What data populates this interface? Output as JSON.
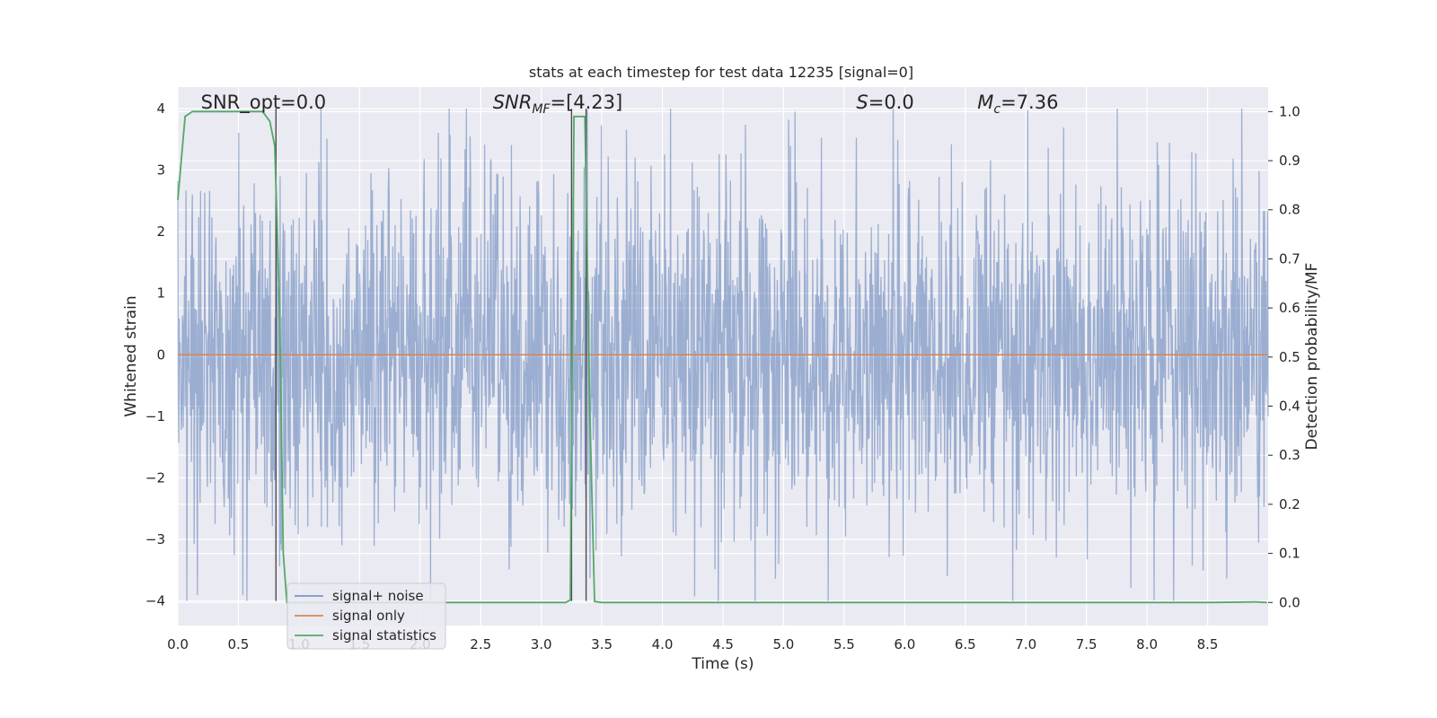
{
  "chart_data": {
    "type": "line",
    "title": "stats at each timestep for test data 12235 [signal=0]",
    "xlabel": "Time (s)",
    "ylabel": "Whitened strain",
    "ylabel_right": "Detection probability/MF",
    "xlim": [
      0.0,
      9.0
    ],
    "ylim": [
      -4.4,
      4.35
    ],
    "ylim_right": [
      -0.047,
      1.05
    ],
    "grid": true,
    "legend_position": "lower-left",
    "x_ticks": [
      "0.0",
      "0.5",
      "1.0",
      "1.5",
      "2.0",
      "2.5",
      "3.0",
      "3.5",
      "4.0",
      "4.5",
      "5.0",
      "5.5",
      "6.0",
      "6.5",
      "7.0",
      "7.5",
      "8.0",
      "8.5"
    ],
    "y_ticks": [
      "4",
      "3",
      "2",
      "1",
      "0",
      "−1",
      "−2",
      "−3",
      "−4"
    ],
    "y_ticks_right": [
      "1.0",
      "0.9",
      "0.8",
      "0.7",
      "0.6",
      "0.5",
      "0.4",
      "0.3",
      "0.2",
      "0.1",
      "0.0"
    ],
    "annotations": [
      {
        "label": "SNR_opt=0.0",
        "x": 0.19
      },
      {
        "label": "SNR",
        "sub": "MF",
        "suffix": "=[4.23]",
        "italic": true,
        "x": 2.6
      },
      {
        "label": "S",
        "suffix": "=0.0",
        "italic": true,
        "x": 5.6
      },
      {
        "label": "M",
        "sub": "c",
        "suffix": "=7.36",
        "italic": true,
        "x": 6.6
      }
    ],
    "vlines_x": [
      0.81,
      3.25,
      3.37
    ],
    "series": [
      {
        "name": "signal+ noise",
        "color": "#4c72b0",
        "opacity": 0.5,
        "description_envelope_seed": 12235,
        "x_range": [
          0.0,
          9.0
        ],
        "amplitude_range": [
          -4.0,
          4.0
        ],
        "typical_abs": 1.7
      },
      {
        "name": "signal only",
        "color": "#dd8452",
        "x": [
          0.0,
          9.0
        ],
        "y": [
          0.0,
          0.0
        ]
      },
      {
        "name": "signal statistics",
        "color": "#55a868",
        "axis": "right",
        "x": [
          0.0,
          0.06,
          0.12,
          0.25,
          0.5,
          0.7,
          0.76,
          0.8,
          0.84,
          0.87,
          0.9,
          1.0,
          2.0,
          3.0,
          3.2,
          3.24,
          3.27,
          3.32,
          3.36,
          3.4,
          3.44,
          3.5,
          4.0,
          5.0,
          6.0,
          7.0,
          8.0,
          8.5,
          8.9,
          8.99
        ],
        "y": [
          0.82,
          0.99,
          1.0,
          1.0,
          1.0,
          1.0,
          0.98,
          0.93,
          0.6,
          0.1,
          0.0,
          0.0,
          0.0,
          0.0,
          0.0,
          0.005,
          0.99,
          0.99,
          0.99,
          0.4,
          0.002,
          0.0,
          0.0,
          0.0,
          0.0,
          0.0,
          0.0,
          0.0,
          0.001,
          0.0
        ]
      }
    ]
  }
}
